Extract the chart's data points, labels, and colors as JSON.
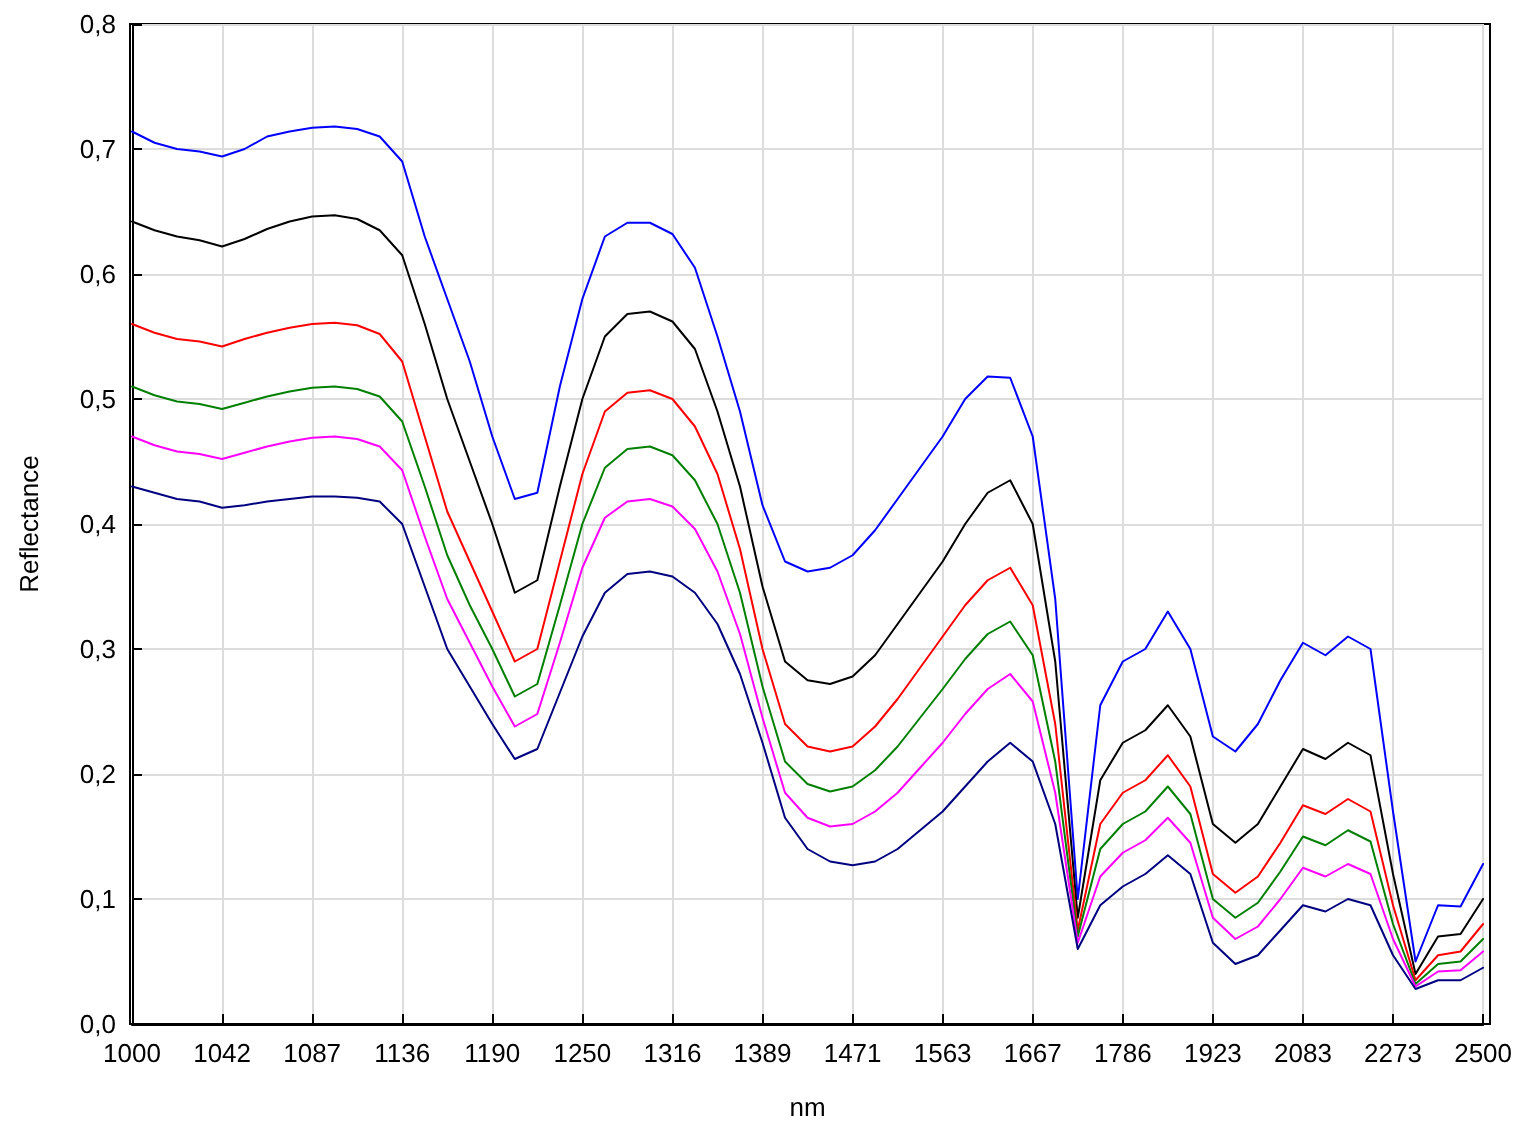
{
  "chart_data": {
    "type": "line",
    "xlabel": "nm",
    "ylabel": "Reflectance",
    "categories": [
      "1000",
      null,
      null,
      null,
      "1042",
      null,
      null,
      null,
      "1087",
      null,
      null,
      null,
      "1136",
      null,
      null,
      null,
      "1190",
      null,
      null,
      null,
      "1250",
      null,
      null,
      null,
      "1316",
      null,
      null,
      null,
      "1389",
      null,
      null,
      null,
      "1471",
      null,
      null,
      null,
      "1563",
      null,
      null,
      null,
      "1667",
      null,
      null,
      null,
      "1786",
      null,
      null,
      null,
      "1923",
      null,
      null,
      null,
      "2083",
      null,
      null,
      null,
      "2273",
      null,
      null,
      null,
      "2500"
    ],
    "series": [
      {
        "color": "#0000ff",
        "values": [
          0.714,
          0.705,
          0.7,
          0.698,
          0.694,
          0.7,
          0.71,
          0.714,
          0.717,
          0.718,
          0.716,
          0.71,
          0.69,
          0.63,
          0.58,
          0.53,
          0.47,
          0.42,
          0.425,
          0.51,
          0.58,
          0.63,
          0.641,
          0.641,
          0.632,
          0.605,
          0.55,
          0.49,
          0.415,
          0.37,
          0.362,
          0.365,
          0.375,
          0.395,
          0.42,
          0.445,
          0.47,
          0.5,
          0.518,
          0.517,
          0.47,
          0.34,
          0.1,
          0.255,
          0.29,
          0.3,
          0.33,
          0.3,
          0.23,
          0.218,
          0.24,
          0.275,
          0.305,
          0.295,
          0.31,
          0.3,
          0.17,
          0.05,
          0.095,
          0.094,
          0.128
        ]
      },
      {
        "color": "#000000",
        "values": [
          0.642,
          0.635,
          0.63,
          0.627,
          0.622,
          0.628,
          0.636,
          0.642,
          0.646,
          0.647,
          0.644,
          0.635,
          0.615,
          0.56,
          0.5,
          0.45,
          0.4,
          0.345,
          0.355,
          0.43,
          0.5,
          0.55,
          0.568,
          0.57,
          0.562,
          0.54,
          0.49,
          0.43,
          0.35,
          0.29,
          0.275,
          0.272,
          0.278,
          0.295,
          0.32,
          0.345,
          0.37,
          0.4,
          0.425,
          0.435,
          0.4,
          0.29,
          0.085,
          0.195,
          0.225,
          0.235,
          0.255,
          0.23,
          0.16,
          0.145,
          0.16,
          0.19,
          0.22,
          0.212,
          0.225,
          0.215,
          0.12,
          0.04,
          0.07,
          0.072,
          0.1
        ]
      },
      {
        "color": "#ff0000",
        "values": [
          0.56,
          0.553,
          0.548,
          0.546,
          0.542,
          0.548,
          0.553,
          0.557,
          0.56,
          0.561,
          0.559,
          0.552,
          0.53,
          0.47,
          0.41,
          0.37,
          0.33,
          0.29,
          0.3,
          0.37,
          0.44,
          0.49,
          0.505,
          0.507,
          0.5,
          0.478,
          0.44,
          0.38,
          0.3,
          0.24,
          0.222,
          0.218,
          0.222,
          0.238,
          0.26,
          0.285,
          0.31,
          0.335,
          0.355,
          0.365,
          0.335,
          0.24,
          0.075,
          0.16,
          0.185,
          0.195,
          0.215,
          0.19,
          0.12,
          0.105,
          0.118,
          0.145,
          0.175,
          0.168,
          0.18,
          0.17,
          0.095,
          0.035,
          0.055,
          0.058,
          0.08
        ]
      },
      {
        "color": "#008000",
        "values": [
          0.51,
          0.503,
          0.498,
          0.496,
          0.492,
          0.497,
          0.502,
          0.506,
          0.509,
          0.51,
          0.508,
          0.502,
          0.482,
          0.43,
          0.375,
          0.335,
          0.3,
          0.262,
          0.272,
          0.335,
          0.4,
          0.445,
          0.46,
          0.462,
          0.455,
          0.435,
          0.4,
          0.345,
          0.27,
          0.21,
          0.192,
          0.186,
          0.19,
          0.203,
          0.222,
          0.245,
          0.268,
          0.292,
          0.312,
          0.322,
          0.295,
          0.21,
          0.07,
          0.14,
          0.16,
          0.17,
          0.19,
          0.168,
          0.1,
          0.085,
          0.097,
          0.122,
          0.15,
          0.143,
          0.155,
          0.146,
          0.08,
          0.032,
          0.048,
          0.05,
          0.068
        ]
      },
      {
        "color": "#ff00ff",
        "values": [
          0.47,
          0.463,
          0.458,
          0.456,
          0.452,
          0.457,
          0.462,
          0.466,
          0.469,
          0.47,
          0.468,
          0.462,
          0.443,
          0.39,
          0.34,
          0.305,
          0.27,
          0.238,
          0.248,
          0.305,
          0.365,
          0.405,
          0.418,
          0.42,
          0.414,
          0.396,
          0.362,
          0.312,
          0.245,
          0.185,
          0.165,
          0.158,
          0.16,
          0.17,
          0.185,
          0.205,
          0.225,
          0.248,
          0.268,
          0.28,
          0.258,
          0.185,
          0.065,
          0.118,
          0.137,
          0.147,
          0.165,
          0.145,
          0.085,
          0.068,
          0.078,
          0.1,
          0.125,
          0.118,
          0.128,
          0.12,
          0.068,
          0.03,
          0.042,
          0.043,
          0.058
        ]
      },
      {
        "color": "#000080",
        "values": [
          0.43,
          0.425,
          0.42,
          0.418,
          0.413,
          0.415,
          0.418,
          0.42,
          0.422,
          0.422,
          0.421,
          0.418,
          0.4,
          0.35,
          0.3,
          0.27,
          0.24,
          0.212,
          0.22,
          0.265,
          0.31,
          0.345,
          0.36,
          0.362,
          0.358,
          0.345,
          0.32,
          0.28,
          0.225,
          0.165,
          0.14,
          0.13,
          0.127,
          0.13,
          0.14,
          0.155,
          0.17,
          0.19,
          0.21,
          0.225,
          0.21,
          0.16,
          0.06,
          0.095,
          0.11,
          0.12,
          0.135,
          0.12,
          0.065,
          0.048,
          0.055,
          0.075,
          0.095,
          0.09,
          0.1,
          0.095,
          0.055,
          0.028,
          0.035,
          0.035,
          0.045
        ]
      }
    ],
    "ylim": [
      0,
      0.8
    ],
    "yticks": [
      {
        "value": 0,
        "label": "0,0"
      },
      {
        "value": 0.1,
        "label": "0,1"
      },
      {
        "value": 0.2,
        "label": "0,2"
      },
      {
        "value": 0.3,
        "label": "0,3"
      },
      {
        "value": 0.4,
        "label": "0,4"
      },
      {
        "value": 0.5,
        "label": "0,5"
      },
      {
        "value": 0.6,
        "label": "0,6"
      },
      {
        "value": 0.7,
        "label": "0,7"
      },
      {
        "value": 0.8,
        "label": "0,8"
      }
    ],
    "grid": true,
    "marker": "none",
    "line_style": "solid"
  }
}
